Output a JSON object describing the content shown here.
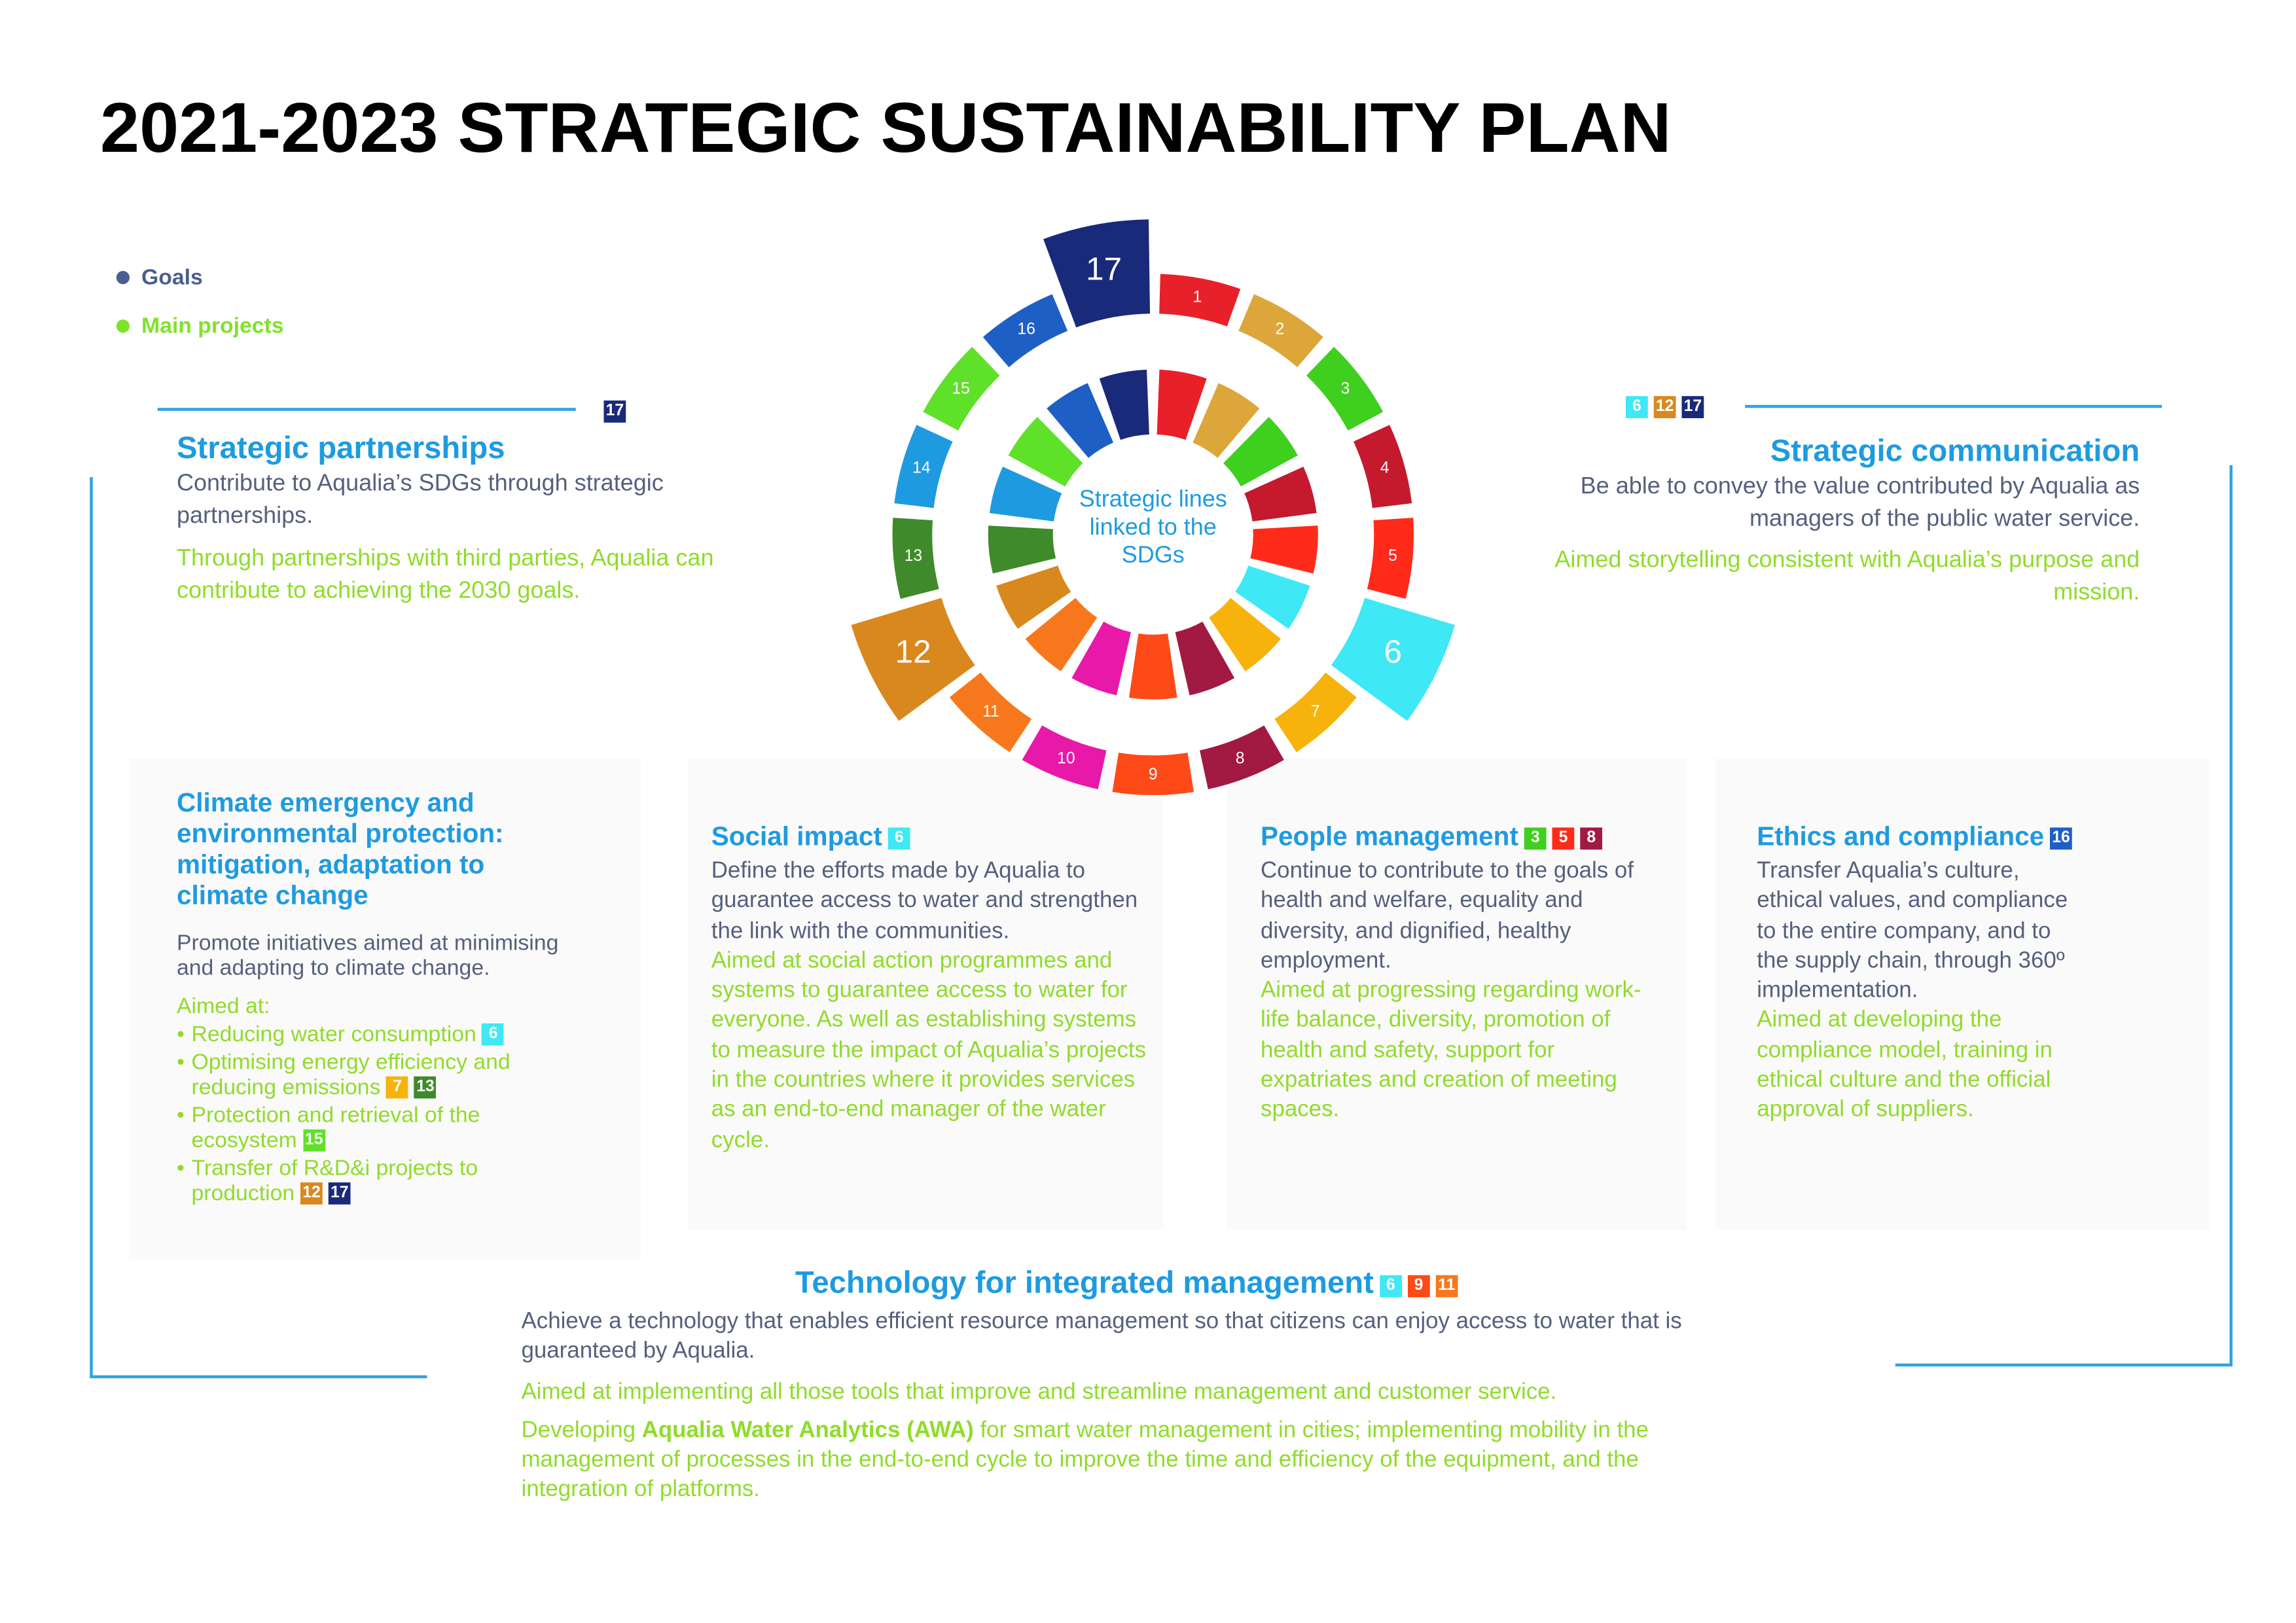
{
  "header": {
    "title": "2021-2023 STRATEGIC SUSTAINABILITY PLAN"
  },
  "legend": [
    {
      "label": "Goals",
      "color": "#4a5f8f"
    },
    {
      "label": "Main projects",
      "color": "#7fe32a"
    }
  ],
  "sdg_wheel": {
    "center_text": "Strategic lines linked to the SDGs",
    "segments": [
      {
        "label": "1",
        "color": "#e8202a",
        "highlighted": false
      },
      {
        "label": "2",
        "color": "#dda63a",
        "highlighted": false
      },
      {
        "label": "3",
        "color": "#3fcf1f",
        "highlighted": false
      },
      {
        "label": "4",
        "color": "#c5192d",
        "highlighted": false
      },
      {
        "label": "5",
        "color": "#ff2a1a",
        "highlighted": false
      },
      {
        "label": "6",
        "color": "#3ee8f5",
        "highlighted": true
      },
      {
        "label": "7",
        "color": "#f7b30b",
        "highlighted": false
      },
      {
        "label": "8",
        "color": "#a21942",
        "highlighted": false
      },
      {
        "label": "9",
        "color": "#fd4a16",
        "highlighted": false
      },
      {
        "label": "10",
        "color": "#e818a8",
        "highlighted": false
      },
      {
        "label": "11",
        "color": "#f7781c",
        "highlighted": false
      },
      {
        "label": "12",
        "color": "#d9881e",
        "highlighted": true
      },
      {
        "label": "13",
        "color": "#3f8a2a",
        "highlighted": false
      },
      {
        "label": "14",
        "color": "#1e9be0",
        "highlighted": false
      },
      {
        "label": "15",
        "color": "#5fe12a",
        "highlighted": false
      },
      {
        "label": "16",
        "color": "#1e5fc6",
        "highlighted": false
      },
      {
        "label": "17",
        "color": "#1a2a7a",
        "highlighted": true
      }
    ]
  },
  "sections": {
    "partnerships": {
      "title": "Strategic partnerships",
      "badges": [
        "17"
      ],
      "description": "Contribute to Aqualia’s SDGs through strategic partnerships.",
      "project": "Through partnerships with third parties, Aqualia can contribute to achieving the 2030 goals."
    },
    "communication": {
      "title": "Strategic communication",
      "badges": [
        "6",
        "12",
        "17"
      ],
      "description": "Be able to convey the value contributed by Aqualia as managers of the public water service.",
      "project": "Aimed storytelling consistent with Aqualia’s purpose and mission."
    },
    "climate": {
      "title": "Climate emergency and environmental protection: mitigation, adaptation to climate change",
      "description": "Promote initiatives aimed at minimising and adapting to climate change.",
      "aim_intro": "Aimed at:",
      "bullets": [
        {
          "text": "Reducing water consumption",
          "badges": [
            "6"
          ]
        },
        {
          "text": "Optimising energy efficiency and reducing emissions",
          "badges": [
            "7",
            "13"
          ]
        },
        {
          "text": "Protection and retrieval of the ecosystem",
          "badges": [
            "15"
          ]
        },
        {
          "text": "Transfer of R&D&i projects to production",
          "badges": [
            "12",
            "17"
          ]
        }
      ]
    },
    "social": {
      "title": "Social impact",
      "badges": [
        "6"
      ],
      "description": "Define the efforts made by Aqualia to guarantee access to water and strengthen the link with the communities.",
      "project": "Aimed at social action programmes and systems to guarantee access to water for everyone. As well as establishing systems to measure the impact of Aqualia’s projects in the countries where it provides services as an end-to-end manager of the water cycle."
    },
    "people": {
      "title": "People management",
      "badges": [
        "3",
        "5",
        "8"
      ],
      "description": "Continue to contribute to the goals of health and welfare, equality and diversity, and dignified, healthy employment.",
      "project": "Aimed at progressing regarding work-life balance, diversity, promotion of health and safety, support for expatriates and creation of meeting spaces."
    },
    "ethics": {
      "title": "Ethics and compliance",
      "badges": [
        "16"
      ],
      "description": "Transfer Aqualia’s culture, ethical values, and compliance to the entire company, and to the supply chain, through 360º implementation.",
      "project": "Aimed at developing the compliance model, training in ethical culture and the official approval of suppliers."
    },
    "technology": {
      "title": "Technology for integrated management",
      "badges": [
        "6",
        "9",
        "11"
      ],
      "description": "Achieve a technology that enables efficient resource management so that citizens can enjoy access to water that is guaranteed by Aqualia.",
      "project": "Aimed at implementing all those tools that improve and streamline management and customer service.",
      "project_2": {
        "before": "Developing ",
        "bold": "Aqualia Water Analytics (AWA)",
        "after": " for smart water management in cities; implementing mobility in the management of processes in the end-to-end cycle to improve the time and efficiency of the equipment, and the integration of platforms."
      }
    }
  }
}
